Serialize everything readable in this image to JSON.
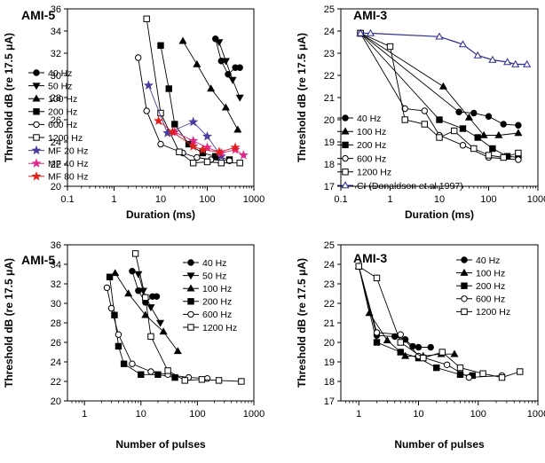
{
  "colors": {
    "black": "#000000",
    "navy": "#2b2b8c",
    "purple": "#4a3c9c",
    "magenta": "#e0288c",
    "red": "#e0201c"
  },
  "chart_data": [
    {
      "type": "line",
      "title": "AMI-5",
      "xlabel": "Duration (ms)",
      "ylabel": "Threshold dB (re 17.5 μA)",
      "xscale": "log",
      "xlim": [
        0.1,
        1000
      ],
      "ylim": [
        20,
        36
      ],
      "xticks": [
        0.1,
        1,
        10,
        100,
        1000
      ],
      "xtick_labels": [
        "0.1",
        "1",
        "10",
        "100",
        "1000"
      ],
      "yticks": [
        20,
        22,
        24,
        26,
        28,
        30,
        32,
        34,
        36
      ],
      "ytick_labels": [
        "20",
        "22",
        "24",
        "26",
        "28",
        "30",
        "32",
        "34",
        "36"
      ],
      "legend_position": "left",
      "series": [
        {
          "name": "40 Hz",
          "marker": "circle",
          "color": "#000000",
          "fill": true,
          "x": [
            150,
            200,
            280,
            400,
            500
          ],
          "y": [
            33.3,
            31.3,
            30.1,
            30.7,
            30.7
          ]
        },
        {
          "name": "50 Hz",
          "marker": "triangle-down",
          "color": "#000000",
          "fill": true,
          "x": [
            180,
            250,
            350,
            500
          ],
          "y": [
            33.0,
            31.3,
            29.6,
            28.0
          ]
        },
        {
          "name": "100 Hz",
          "marker": "triangle-up",
          "color": "#000000",
          "fill": true,
          "x": [
            30,
            60,
            120,
            250,
            450
          ],
          "y": [
            33.1,
            31.0,
            28.8,
            27.1,
            25.1
          ]
        },
        {
          "name": "200 Hz",
          "marker": "square",
          "color": "#000000",
          "fill": true,
          "x": [
            10,
            15,
            20,
            40,
            80,
            150,
            300
          ],
          "y": [
            32.7,
            28.8,
            25.6,
            23.8,
            23.0,
            22.7,
            22.4
          ]
        },
        {
          "name": "600 Hz",
          "marker": "circle",
          "color": "#000000",
          "fill": false,
          "x": [
            3.3,
            5,
            10,
            30,
            60,
            120,
            300
          ],
          "y": [
            31.6,
            26.8,
            23.8,
            23.0,
            22.6,
            22.4,
            22.3
          ]
        },
        {
          "name": "1200 Hz",
          "marker": "square",
          "color": "#000000",
          "fill": false,
          "x": [
            5,
            10,
            25,
            50,
            100,
            200,
            500
          ],
          "y": [
            35.1,
            26.6,
            23.1,
            22.1,
            22.2,
            22.1,
            22.1
          ]
        },
        {
          "name": "MF 20 Hz",
          "marker": "star",
          "color": "#4a3c9c",
          "fill": true,
          "x": [
            5.5,
            14,
            50,
            100,
            200
          ],
          "y": [
            29.1,
            24.8,
            25.8,
            24.5,
            22.7
          ]
        },
        {
          "name": "MF 40 Hz",
          "marker": "star",
          "color": "#e0288c",
          "fill": true,
          "x": [
            20,
            50,
            100,
            200,
            400,
            600
          ],
          "y": [
            24.9,
            24.1,
            23.5,
            23.0,
            23.3,
            22.8
          ]
        },
        {
          "name": "MF 80 Hz",
          "marker": "star",
          "color": "#e0201c",
          "fill": true,
          "x": [
            9,
            18,
            50,
            80,
            180,
            400
          ],
          "y": [
            25.9,
            24.9,
            23.6,
            23.3,
            23.1,
            23.5
          ]
        }
      ]
    },
    {
      "type": "line",
      "title": "AMI-3",
      "xlabel": "Duration (ms)",
      "ylabel": "Threshold dB (re 17.5 μA)",
      "xscale": "log",
      "xlim": [
        0.1,
        1000
      ],
      "ylim": [
        17,
        25
      ],
      "xticks": [
        0.1,
        1,
        10,
        100,
        1000
      ],
      "xtick_labels": [
        "0.1",
        "1",
        "10",
        "100",
        "1000"
      ],
      "yticks": [
        17,
        18,
        19,
        20,
        21,
        22,
        23,
        24,
        25
      ],
      "ytick_labels": [
        "17",
        "18",
        "19",
        "20",
        "21",
        "22",
        "23",
        "24",
        "25"
      ],
      "legend_position": "bottom-left",
      "series": [
        {
          "name": "40 Hz",
          "marker": "circle",
          "color": "#000000",
          "fill": true,
          "x": [
            0.25,
            25,
            50,
            100,
            200,
            400
          ],
          "y": [
            23.9,
            20.35,
            20.3,
            20.15,
            19.8,
            19.75
          ]
        },
        {
          "name": "100 Hz",
          "marker": "triangle-up",
          "color": "#000000",
          "fill": true,
          "x": [
            0.25,
            12,
            40,
            80,
            160,
            400
          ],
          "y": [
            23.9,
            21.5,
            20.1,
            19.3,
            19.3,
            19.4
          ]
        },
        {
          "name": "200 Hz",
          "marker": "square",
          "color": "#000000",
          "fill": true,
          "x": [
            0.25,
            10,
            30,
            60,
            120,
            240,
            400
          ],
          "y": [
            23.9,
            20.0,
            19.6,
            19.2,
            18.7,
            18.35,
            18.3
          ]
        },
        {
          "name": "600 Hz",
          "marker": "circle",
          "color": "#000000",
          "fill": false,
          "x": [
            0.25,
            2,
            5,
            10,
            30,
            100,
            400
          ],
          "y": [
            23.9,
            20.5,
            20.4,
            19.3,
            18.85,
            18.3,
            18.2
          ]
        },
        {
          "name": "1200 Hz",
          "marker": "square",
          "color": "#000000",
          "fill": false,
          "x": [
            0.25,
            1,
            2,
            5,
            10,
            20,
            50,
            100,
            200,
            400
          ],
          "y": [
            23.9,
            23.3,
            20.0,
            19.8,
            19.2,
            19.5,
            18.7,
            18.4,
            18.3,
            18.5
          ]
        },
        {
          "name": "CI (Donaldson et al 1997)",
          "marker": "triangle-up",
          "color": "#2b2b8c",
          "fill": false,
          "x": [
            0.25,
            0.4,
            10,
            30,
            60,
            120,
            240,
            350,
            600
          ],
          "y": [
            23.9,
            23.9,
            23.75,
            23.4,
            22.9,
            22.7,
            22.6,
            22.5,
            22.5
          ]
        }
      ]
    },
    {
      "type": "line",
      "title": "AMI-5",
      "xlabel": "Number of pulses",
      "ylabel": "Threshold dB (re 17.5 μA)",
      "xscale": "log",
      "xlim": [
        0.5,
        1000
      ],
      "ylim": [
        20,
        36
      ],
      "xticks": [
        1,
        10,
        100,
        1000
      ],
      "xtick_labels": [
        "1",
        "10",
        "100",
        "1000"
      ],
      "yticks": [
        20,
        22,
        24,
        26,
        28,
        30,
        32,
        34,
        36
      ],
      "ytick_labels": [
        "20",
        "22",
        "24",
        "26",
        "28",
        "30",
        "32",
        "34",
        "36"
      ],
      "legend_position": "top-right",
      "series": [
        {
          "name": "40 Hz",
          "marker": "circle",
          "color": "#000000",
          "fill": true,
          "x": [
            7,
            9,
            12,
            16,
            19
          ],
          "y": [
            33.3,
            31.3,
            30.1,
            30.7,
            30.7
          ]
        },
        {
          "name": "50 Hz",
          "marker": "triangle-down",
          "color": "#000000",
          "fill": true,
          "x": [
            9,
            11,
            15,
            22
          ],
          "y": [
            33.0,
            31.3,
            29.6,
            28.0
          ]
        },
        {
          "name": "100 Hz",
          "marker": "triangle-up",
          "color": "#000000",
          "fill": true,
          "x": [
            3.5,
            6,
            12,
            25,
            45
          ],
          "y": [
            33.1,
            31.0,
            28.8,
            27.1,
            25.1
          ]
        },
        {
          "name": "200 Hz",
          "marker": "square",
          "color": "#000000",
          "fill": true,
          "x": [
            2.8,
            3.4,
            4,
            5,
            10,
            20,
            40
          ],
          "y": [
            32.7,
            28.8,
            25.6,
            23.8,
            22.7,
            22.7,
            22.4
          ]
        },
        {
          "name": "600 Hz",
          "marker": "circle",
          "color": "#000000",
          "fill": false,
          "x": [
            2.5,
            3,
            4,
            7,
            15,
            30,
            70,
            150
          ],
          "y": [
            31.6,
            29.5,
            26.8,
            23.8,
            23.0,
            22.7,
            22.4,
            22.3
          ]
        },
        {
          "name": "1200 Hz",
          "marker": "square",
          "color": "#000000",
          "fill": false,
          "x": [
            8,
            12,
            15,
            30,
            60,
            120,
            240,
            600
          ],
          "y": [
            35.1,
            30.6,
            26.6,
            23.1,
            22.1,
            22.2,
            22.1,
            22.0
          ]
        }
      ]
    },
    {
      "type": "line",
      "title": "AMI-3",
      "xlabel": "Number of pulses",
      "ylabel": "Threshold dB (re 17.5 μA)",
      "xscale": "log",
      "xlim": [
        0.5,
        1000
      ],
      "ylim": [
        17,
        25
      ],
      "xticks": [
        1,
        10,
        100,
        1000
      ],
      "xtick_labels": [
        "1",
        "10",
        "100",
        "1000"
      ],
      "yticks": [
        17,
        18,
        19,
        20,
        21,
        22,
        23,
        24,
        25
      ],
      "ytick_labels": [
        "17",
        "18",
        "19",
        "20",
        "21",
        "22",
        "23",
        "24",
        "25"
      ],
      "legend_position": "top-right",
      "series": [
        {
          "name": "40 Hz",
          "marker": "circle",
          "color": "#000000",
          "fill": true,
          "x": [
            1,
            2,
            4,
            6,
            8,
            10,
            16
          ],
          "y": [
            23.9,
            20.35,
            20.3,
            20.15,
            19.8,
            19.75,
            19.75
          ]
        },
        {
          "name": "100 Hz",
          "marker": "triangle-up",
          "color": "#000000",
          "fill": true,
          "x": [
            1,
            1.5,
            3,
            6,
            12,
            24,
            40
          ],
          "y": [
            23.9,
            21.5,
            20.1,
            19.3,
            19.3,
            19.4,
            19.4
          ]
        },
        {
          "name": "200 Hz",
          "marker": "square",
          "color": "#000000",
          "fill": true,
          "x": [
            1,
            2,
            5,
            10,
            20,
            50,
            80
          ],
          "y": [
            23.9,
            20.0,
            19.5,
            19.2,
            18.7,
            18.35,
            18.3
          ]
        },
        {
          "name": "600 Hz",
          "marker": "circle",
          "color": "#000000",
          "fill": false,
          "x": [
            1,
            2,
            5,
            10,
            30,
            70,
            250
          ],
          "y": [
            23.9,
            20.5,
            20.4,
            19.3,
            18.85,
            18.2,
            18.3
          ]
        },
        {
          "name": "1200 Hz",
          "marker": "square",
          "color": "#000000",
          "fill": false,
          "x": [
            1,
            2,
            5,
            12,
            25,
            50,
            120,
            250,
            500
          ],
          "y": [
            23.9,
            23.3,
            20.0,
            19.2,
            19.5,
            18.7,
            18.4,
            18.2,
            18.5
          ]
        }
      ]
    }
  ]
}
